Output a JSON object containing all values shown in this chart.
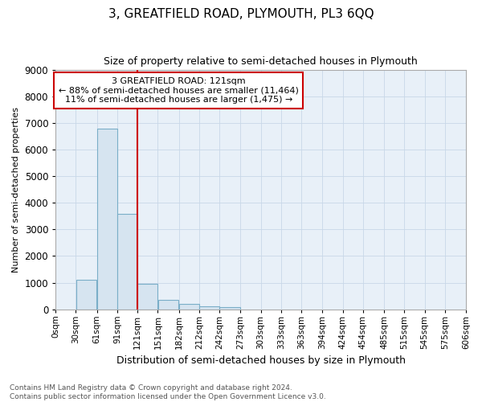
{
  "title": "3, GREATFIELD ROAD, PLYMOUTH, PL3 6QQ",
  "subtitle": "Size of property relative to semi-detached houses in Plymouth",
  "xlabel": "Distribution of semi-detached houses by size in Plymouth",
  "ylabel": "Number of semi-detached properties",
  "annotation_line1": "3 GREATFIELD ROAD: 121sqm",
  "annotation_line2": "← 88% of semi-detached houses are smaller (11,464)",
  "annotation_line3": "11% of semi-detached houses are larger (1,475) →",
  "footer_line1": "Contains HM Land Registry data © Crown copyright and database right 2024.",
  "footer_line2": "Contains public sector information licensed under the Open Government Licence v3.0.",
  "property_size_sqm": 121,
  "bar_edges": [
    0,
    30,
    61,
    91,
    121,
    151,
    182,
    212,
    242,
    273,
    303,
    333,
    363,
    394,
    424,
    454,
    485,
    515,
    545,
    575,
    606
  ],
  "bar_heights": [
    0,
    1100,
    6800,
    3600,
    950,
    350,
    200,
    100,
    80,
    0,
    0,
    0,
    0,
    0,
    0,
    0,
    0,
    0,
    0,
    0
  ],
  "bar_color": "#d6e4f0",
  "bar_edge_color": "#7aaec8",
  "grid_color": "#c8d8e8",
  "background_color": "#ffffff",
  "axes_bg_color": "#e8f0f8",
  "red_line_color": "#cc0000",
  "annotation_box_color": "#cc0000",
  "ylim": [
    0,
    9000
  ],
  "yticks": [
    0,
    1000,
    2000,
    3000,
    4000,
    5000,
    6000,
    7000,
    8000,
    9000
  ],
  "tick_labels": [
    "0sqm",
    "30sqm",
    "61sqm",
    "91sqm",
    "121sqm",
    "151sqm",
    "182sqm",
    "212sqm",
    "242sqm",
    "273sqm",
    "303sqm",
    "333sqm",
    "363sqm",
    "394sqm",
    "424sqm",
    "454sqm",
    "485sqm",
    "515sqm",
    "545sqm",
    "575sqm",
    "606sqm"
  ]
}
